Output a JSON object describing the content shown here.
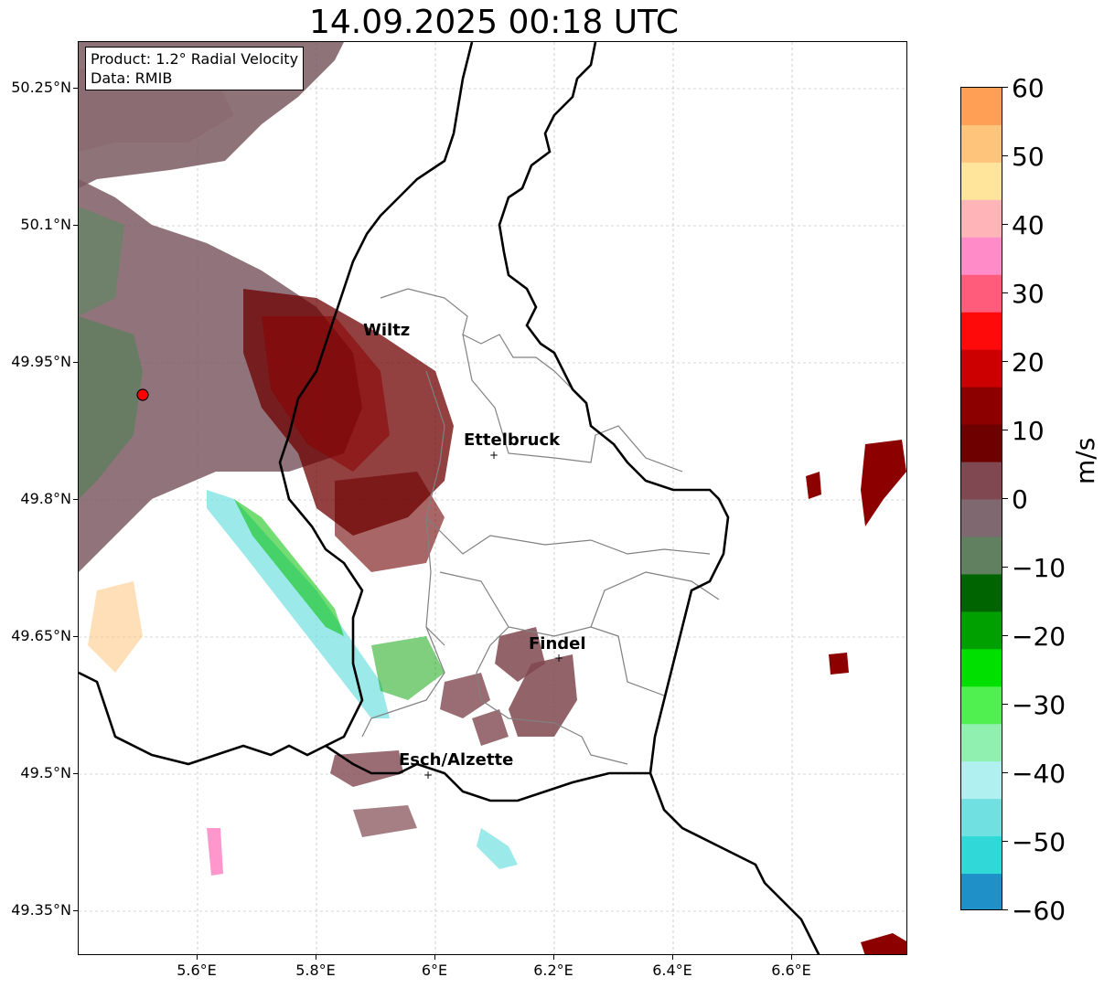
{
  "title": "14.09.2025 00:18 UTC",
  "info": {
    "product": "Product: 1.2° Radial Velocity",
    "source": "Data: RMIB"
  },
  "lat_labels": [
    "50.25°N",
    "50.1°N",
    "49.95°N",
    "49.8°N",
    "49.65°N",
    "49.5°N",
    "49.35°N"
  ],
  "lon_labels": [
    "5.6°E",
    "5.8°E",
    "6°E",
    "6.2°E",
    "6.4°E",
    "6.6°E"
  ],
  "cities": [
    {
      "name": "Wiltz"
    },
    {
      "name": "Ettelbruck"
    },
    {
      "name": "Findel"
    },
    {
      "name": "Esch/Alzette"
    }
  ],
  "colorbar": {
    "unit": "m/s",
    "tick_labels": [
      "60",
      "50",
      "40",
      "30",
      "20",
      "10",
      "0",
      "−10",
      "−20",
      "−30",
      "−40",
      "−50",
      "−60"
    ],
    "range": [
      -60,
      60
    ],
    "colors_top_to_bottom": [
      "#ff9f55",
      "#ffc47c",
      "#ffe49c",
      "#ffb4b8",
      "#ff8cc8",
      "#ff5c7c",
      "#ff0a0a",
      "#cc0000",
      "#8c0000",
      "#6e0000",
      "#804850",
      "#806870",
      "#608060",
      "#006400",
      "#00a000",
      "#00e000",
      "#50f050",
      "#90f0b0",
      "#b0f0f0",
      "#70e0e0",
      "#30d8d8",
      "#2090c8"
    ]
  },
  "colors": {
    "border": "#000000",
    "admin_border": "#808080",
    "radar_site": "#ff0000"
  }
}
